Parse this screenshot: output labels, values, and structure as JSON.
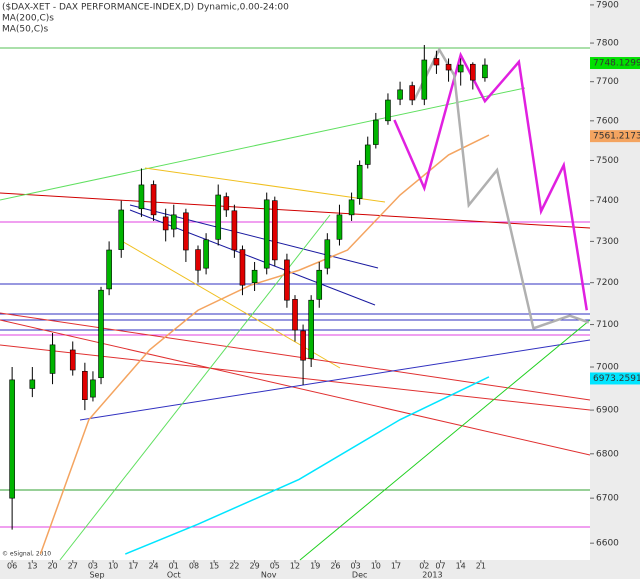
{
  "chart_data": {
    "type": "candlestick",
    "title": "($DAX-XET - DAX PERFORMANCE-INDEX,D) Dynamic,0.00-24:00",
    "log_scale": true,
    "xlim": [
      -3,
      143
    ],
    "ylim": [
      6563,
      7913
    ],
    "yticks": [
      6600,
      6700,
      6800,
      6900,
      7000,
      7100,
      7200,
      7300,
      7400,
      7500,
      7600,
      7700,
      7800,
      7900
    ],
    "xticks": [
      {
        "value": 0,
        "label": "06"
      },
      {
        "value": 5,
        "label": "13"
      },
      {
        "value": 10,
        "label": "20"
      },
      {
        "value": 15,
        "label": "27"
      },
      {
        "value": 20,
        "label": "03"
      },
      {
        "value": 25,
        "label": "10"
      },
      {
        "value": 30,
        "label": "17"
      },
      {
        "value": 35,
        "label": "24"
      },
      {
        "value": 40,
        "label": "01"
      },
      {
        "value": 45,
        "label": "08"
      },
      {
        "value": 50,
        "label": "15"
      },
      {
        "value": 55,
        "label": "22"
      },
      {
        "value": 60,
        "label": "29"
      },
      {
        "value": 65,
        "label": "05"
      },
      {
        "value": 70,
        "label": "12"
      },
      {
        "value": 75,
        "label": "19"
      },
      {
        "value": 80,
        "label": "26"
      },
      {
        "value": 85,
        "label": "03"
      },
      {
        "value": 90,
        "label": "10"
      },
      {
        "value": 95,
        "label": "17"
      },
      {
        "value": 102,
        "label": "02"
      },
      {
        "value": 106,
        "label": "07"
      },
      {
        "value": 111,
        "label": "14"
      },
      {
        "value": 116,
        "label": "21"
      }
    ],
    "month_ticks": [
      {
        "value": 21,
        "label": "Sep"
      },
      {
        "value": 40,
        "label": "Oct"
      },
      {
        "value": 63.5,
        "label": "Nov"
      },
      {
        "value": 86,
        "label": "Dec"
      },
      {
        "value": 104,
        "label": "2013"
      }
    ],
    "candles": {
      "up_color": "#00b400",
      "down_color": "#e00000",
      "x": [
        0,
        5,
        10,
        15,
        18,
        20,
        22,
        24,
        27,
        32,
        35,
        38,
        40,
        43,
        46,
        48,
        51,
        53,
        55,
        57,
        60,
        63,
        65,
        68,
        70,
        72,
        74,
        76,
        78,
        81,
        84,
        86,
        88,
        90,
        93,
        96,
        99,
        102,
        105,
        108,
        111,
        114,
        117
      ],
      "open": [
        6700,
        6950,
        6985,
        7040,
        6990,
        6930,
        6975,
        7185,
        7280,
        7380,
        7440,
        7360,
        7330,
        7370,
        7280,
        7235,
        7305,
        7410,
        7375,
        7280,
        7200,
        7235,
        7400,
        7255,
        7160,
        7085,
        7020,
        7160,
        7235,
        7305,
        7365,
        7405,
        7490,
        7540,
        7600,
        7655,
        7690,
        7655,
        7760,
        7745,
        7725,
        7745,
        7710
      ],
      "high": [
        7000,
        7000,
        7080,
        7060,
        7010,
        6990,
        7190,
        7300,
        7400,
        7480,
        7450,
        7380,
        7390,
        7380,
        7290,
        7320,
        7440,
        7420,
        7390,
        7290,
        7250,
        7420,
        7410,
        7270,
        7170,
        7100,
        7170,
        7250,
        7320,
        7390,
        7420,
        7500,
        7560,
        7620,
        7670,
        7700,
        7700,
        7795,
        7780,
        7760,
        7760,
        7750,
        7760
      ],
      "low": [
        6630,
        6930,
        6960,
        6980,
        6900,
        6920,
        6960,
        7170,
        7260,
        7360,
        7350,
        7300,
        7310,
        7250,
        7200,
        7220,
        7290,
        7360,
        7260,
        7170,
        7180,
        7220,
        7240,
        7140,
        7060,
        6958,
        7000,
        7140,
        7220,
        7290,
        7350,
        7390,
        7480,
        7530,
        7590,
        7640,
        7640,
        7640,
        7720,
        7700,
        7690,
        7680,
        7700
      ],
      "close": [
        6970,
        6970,
        7052,
        6993,
        6924,
        6970,
        7182,
        7279,
        7377,
        7439,
        7365,
        7328,
        7365,
        7279,
        7230,
        7304,
        7414,
        7377,
        7279,
        7194,
        7230,
        7402,
        7255,
        7158,
        7087,
        7016,
        7158,
        7230,
        7304,
        7365,
        7402,
        7488,
        7539,
        7602,
        7653,
        7679,
        7653,
        7756,
        7743,
        7730,
        7743,
        7704,
        7743
      ]
    },
    "series": [
      {
        "name": "MA(200,C)s",
        "color": "#00e5ff",
        "x": [
          28,
          46,
          71,
          96,
          118
        ],
        "values": [
          6576,
          6642,
          6742,
          6878,
          6977
        ]
      },
      {
        "name": "MA(50,C)s",
        "color": "#f4a460",
        "x": [
          7,
          19,
          34,
          46,
          59,
          71,
          83,
          96,
          108,
          118
        ],
        "values": [
          6576,
          6878,
          7040,
          7134,
          7194,
          7230,
          7279,
          7414,
          7514,
          7564
        ]
      }
    ],
    "projections": [
      {
        "color": "#e020e0",
        "x": [
          94.6,
          102,
          111,
          117,
          125.4,
          130.9,
          136.5,
          142.2
        ],
        "values": [
          7602,
          7431,
          7769,
          7650,
          7751,
          7374,
          7488,
          7134
        ]
      },
      {
        "color": "#b0b0b0",
        "x": [
          99.5,
          105.7,
          109.4,
          113,
          120,
          129,
          138,
          142.7
        ],
        "values": [
          7653,
          7783,
          7717,
          7389,
          7476,
          7091,
          7121,
          7105
        ]
      }
    ],
    "price_labels": [
      {
        "value": 7748.1299,
        "color": "#00e000"
      },
      {
        "value": 7561.2173,
        "color": "#f4a460"
      },
      {
        "value": 6973.2591,
        "color": "#00e5ff"
      }
    ],
    "footer": "© eSignal, 2010"
  }
}
